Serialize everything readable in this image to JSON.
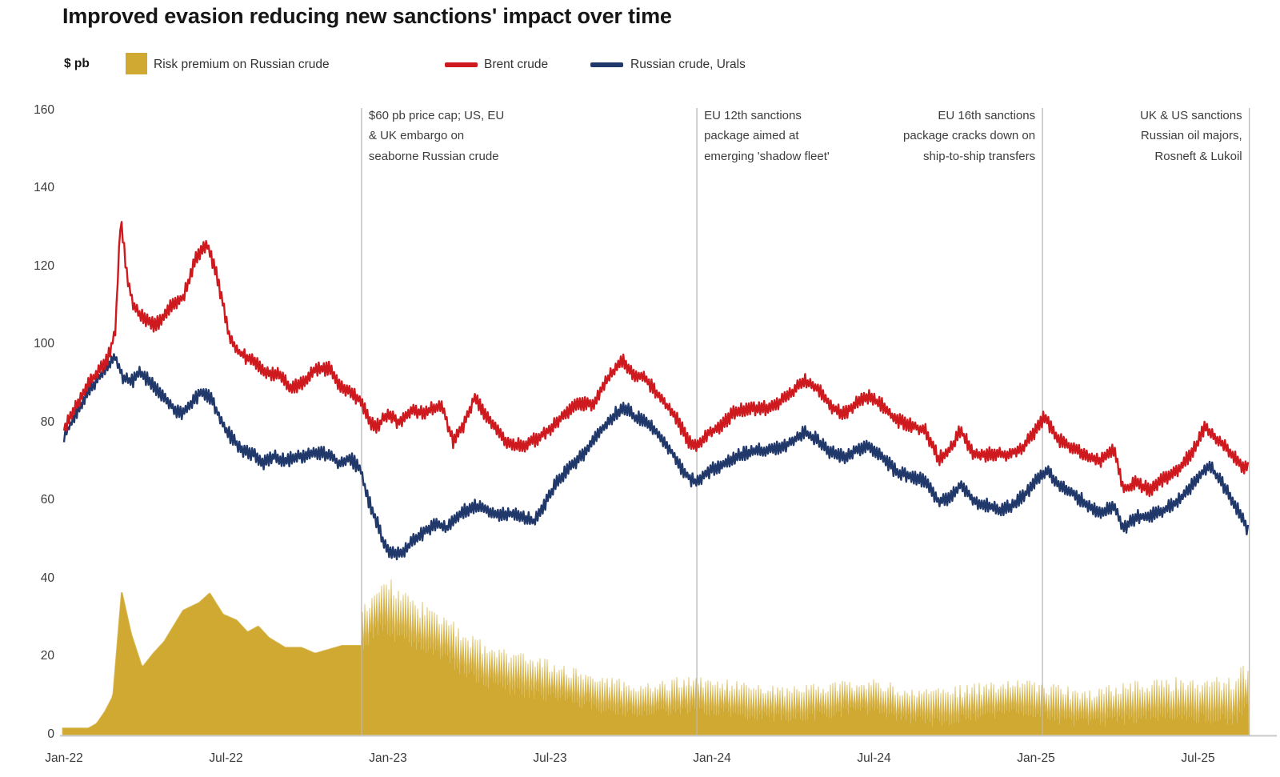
{
  "title": "Improved evasion reducing new sanctions' impact over time",
  "legend": {
    "unit_label": "$ pb",
    "items": [
      {
        "label": "Risk premium on Russian crude",
        "color": "#D0A933",
        "type": "area"
      },
      {
        "label": "Brent crude",
        "color": "#CE1A1E",
        "type": "line"
      },
      {
        "label": "Russian crude, Urals",
        "color": "#21386B",
        "type": "line"
      }
    ]
  },
  "annotations": [
    {
      "id": "price-cap-embargo",
      "month": 11.02,
      "align": "left",
      "lines": [
        "$60 pb price cap; US, EU",
        "& UK embargo on",
        "seaborne Russian crude"
      ]
    },
    {
      "id": "eu-12th-package",
      "month": 23.44,
      "align": "left",
      "lines": [
        "EU 12th sanctions",
        "package aimed at",
        "emerging 'shadow fleet'"
      ]
    },
    {
      "id": "eu-16th-package",
      "month": 36.24,
      "align": "right",
      "lines": [
        "EU 16th sanctions",
        "package cracks down on",
        "ship-to-ship transfers"
      ]
    },
    {
      "id": "uk-us-oil-majors",
      "month": 43.9,
      "align": "right",
      "lines": [
        "UK & US sanctions",
        "Russian oil majors,",
        "Rosneft & Lukoil"
      ]
    }
  ],
  "chart_data": {
    "type": "composite",
    "title": "Improved evasion reducing new sanctions' impact over time",
    "ylabel": "$ pb",
    "grid": false,
    "x_axis": {
      "unit": "months since Jan-2022",
      "range": [
        0,
        44.8
      ],
      "ticks": [
        {
          "m": 0,
          "label": "Jan-22"
        },
        {
          "m": 6,
          "label": "Jul-22"
        },
        {
          "m": 12,
          "label": "Jan-23"
        },
        {
          "m": 18,
          "label": "Jul-23"
        },
        {
          "m": 24,
          "label": "Jan-24"
        },
        {
          "m": 30,
          "label": "Jul-24"
        },
        {
          "m": 36,
          "label": "Jan-25"
        },
        {
          "m": 42,
          "label": "Jul-25"
        }
      ]
    },
    "y_axis": {
      "unit": "$ pb",
      "range": [
        0,
        160
      ],
      "ticks": [
        0,
        20,
        40,
        60,
        80,
        100,
        120,
        140,
        160
      ]
    },
    "series": [
      {
        "name": "Risk premium on Russian crude",
        "type": "area",
        "color": "#D0A933",
        "tip_color": "#DCBE62",
        "smooth_until_month": 11.02,
        "knots_smooth": [
          [
            0,
            1.8
          ],
          [
            0.9,
            1.8
          ],
          [
            1.2,
            3
          ],
          [
            1.5,
            6
          ],
          [
            1.8,
            10
          ],
          [
            2.13,
            37.5
          ],
          [
            2.5,
            26
          ],
          [
            2.9,
            17.5
          ],
          [
            3.3,
            21
          ],
          [
            3.7,
            24
          ],
          [
            4.4,
            32
          ],
          [
            5,
            34
          ],
          [
            5.4,
            36.5
          ],
          [
            5.9,
            31
          ],
          [
            6.4,
            29.5
          ],
          [
            6.8,
            26.5
          ],
          [
            7.2,
            28
          ],
          [
            7.6,
            25
          ],
          [
            8.2,
            22.5
          ],
          [
            8.8,
            22.5
          ],
          [
            9.3,
            21
          ],
          [
            9.8,
            22
          ],
          [
            10.3,
            23
          ],
          [
            11.02,
            23
          ]
        ],
        "noisy_mean_knots": [
          [
            11.05,
            28
          ],
          [
            11.5,
            31
          ],
          [
            11.8,
            33
          ],
          [
            12.2,
            31
          ],
          [
            12.6,
            29
          ],
          [
            13,
            27.5
          ],
          [
            13.6,
            26
          ],
          [
            14.2,
            24
          ],
          [
            15,
            21
          ],
          [
            15.6,
            19
          ],
          [
            16.3,
            17
          ],
          [
            17,
            15
          ],
          [
            17.6,
            13.5
          ],
          [
            18.4,
            12.5
          ],
          [
            19.2,
            11.5
          ],
          [
            20,
            10.5
          ],
          [
            21,
            10
          ],
          [
            22,
            9.5
          ],
          [
            23,
            9.5
          ],
          [
            24,
            9
          ],
          [
            26,
            9
          ],
          [
            28,
            8.5
          ],
          [
            30,
            9
          ],
          [
            32,
            8
          ],
          [
            34,
            8
          ],
          [
            36,
            9
          ],
          [
            38,
            7.5
          ],
          [
            40,
            8
          ],
          [
            41,
            8.5
          ],
          [
            42,
            9
          ],
          [
            42.8,
            9.5
          ],
          [
            43.3,
            10
          ],
          [
            43.7,
            12
          ],
          [
            43.88,
            13
          ]
        ],
        "noisy_amp_knots": [
          [
            11.05,
            7
          ],
          [
            12,
            8
          ],
          [
            13,
            7
          ],
          [
            14,
            6.5
          ],
          [
            16,
            6
          ],
          [
            18,
            5.5
          ],
          [
            20,
            5
          ],
          [
            24,
            5
          ],
          [
            28,
            4.8
          ],
          [
            32,
            5
          ],
          [
            36,
            5.2
          ],
          [
            40,
            5.5
          ],
          [
            42.5,
            6
          ],
          [
            43.5,
            7
          ],
          [
            43.88,
            7
          ]
        ]
      },
      {
        "name": "Brent crude",
        "type": "line",
        "color": "#CE1A1E",
        "knots": [
          [
            0,
            78
          ],
          [
            0.5,
            84
          ],
          [
            1,
            90
          ],
          [
            1.6,
            96
          ],
          [
            1.9,
            104
          ],
          [
            2.1,
            133
          ],
          [
            2.35,
            117
          ],
          [
            2.6,
            110
          ],
          [
            3,
            106
          ],
          [
            3.4,
            104
          ],
          [
            3.9,
            108
          ],
          [
            4.4,
            111
          ],
          [
            4.9,
            122
          ],
          [
            5.3,
            126
          ],
          [
            5.6,
            120
          ],
          [
            5.9,
            111
          ],
          [
            6.1,
            103
          ],
          [
            6.4,
            99
          ],
          [
            6.7,
            97
          ],
          [
            7.1,
            95
          ],
          [
            7.5,
            92
          ],
          [
            8,
            92
          ],
          [
            8.4,
            89
          ],
          [
            8.9,
            92
          ],
          [
            9.3,
            95
          ],
          [
            9.8,
            95
          ],
          [
            10.2,
            90
          ],
          [
            10.7,
            87
          ],
          [
            11.02,
            85
          ],
          [
            11.3,
            80
          ],
          [
            11.6,
            79
          ],
          [
            12,
            83
          ],
          [
            12.4,
            81
          ],
          [
            12.9,
            84
          ],
          [
            13.4,
            83
          ],
          [
            14,
            84
          ],
          [
            14.4,
            74
          ],
          [
            14.8,
            78
          ],
          [
            15.2,
            86
          ],
          [
            15.6,
            82
          ],
          [
            16,
            79
          ],
          [
            16.4,
            75
          ],
          [
            17,
            74
          ],
          [
            17.5,
            75
          ],
          [
            18,
            77
          ],
          [
            18.5,
            81
          ],
          [
            19,
            85
          ],
          [
            19.6,
            86
          ],
          [
            20.1,
            92
          ],
          [
            20.7,
            96
          ],
          [
            21.1,
            92
          ],
          [
            21.5,
            91
          ],
          [
            21.9,
            88
          ],
          [
            22.3,
            85
          ],
          [
            22.7,
            82
          ],
          [
            23.1,
            77
          ],
          [
            23.44,
            75
          ],
          [
            23.8,
            78
          ],
          [
            24.3,
            79
          ],
          [
            24.8,
            82
          ],
          [
            25.4,
            83
          ],
          [
            26,
            84
          ],
          [
            26.5,
            86
          ],
          [
            27.1,
            89
          ],
          [
            27.4,
            91
          ],
          [
            27.9,
            88
          ],
          [
            28.4,
            83
          ],
          [
            28.9,
            81
          ],
          [
            29.4,
            85
          ],
          [
            29.8,
            87
          ],
          [
            30.3,
            85
          ],
          [
            30.8,
            81
          ],
          [
            31.3,
            79
          ],
          [
            31.9,
            77
          ],
          [
            32.4,
            70
          ],
          [
            32.9,
            74
          ],
          [
            33.2,
            79
          ],
          [
            33.7,
            73
          ],
          [
            34.3,
            73
          ],
          [
            34.9,
            72
          ],
          [
            35.5,
            73
          ],
          [
            36,
            78
          ],
          [
            36.3,
            82
          ],
          [
            36.8,
            77
          ],
          [
            37.3,
            75
          ],
          [
            37.9,
            72
          ],
          [
            38.4,
            70
          ],
          [
            38.9,
            72
          ],
          [
            39.25,
            62
          ],
          [
            39.7,
            64
          ],
          [
            40.2,
            63
          ],
          [
            40.7,
            66
          ],
          [
            41.2,
            68
          ],
          [
            41.7,
            71
          ],
          [
            42,
            74
          ],
          [
            42.25,
            78
          ],
          [
            42.6,
            75
          ],
          [
            43,
            73
          ],
          [
            43.3,
            71
          ],
          [
            43.6,
            69
          ],
          [
            43.88,
            69
          ]
        ]
      },
      {
        "name": "Russian crude, Urals",
        "type": "line",
        "color": "#21386B",
        "knots": [
          [
            0,
            76
          ],
          [
            0.5,
            82
          ],
          [
            1,
            88
          ],
          [
            1.5,
            93
          ],
          [
            1.9,
            97
          ],
          [
            2.2,
            92
          ],
          [
            2.5,
            91
          ],
          [
            2.8,
            93
          ],
          [
            3.2,
            90
          ],
          [
            3.6,
            86
          ],
          [
            4,
            83
          ],
          [
            4.3,
            81
          ],
          [
            4.7,
            84
          ],
          [
            5.1,
            88
          ],
          [
            5.4,
            87
          ],
          [
            5.8,
            82
          ],
          [
            6,
            79
          ],
          [
            6.3,
            76
          ],
          [
            6.6,
            73
          ],
          [
            7,
            72
          ],
          [
            7.4,
            69
          ],
          [
            7.8,
            71
          ],
          [
            8.2,
            70
          ],
          [
            8.6,
            72
          ],
          [
            9,
            73
          ],
          [
            9.4,
            74
          ],
          [
            9.8,
            73
          ],
          [
            10.2,
            70
          ],
          [
            10.6,
            71
          ],
          [
            11.02,
            67
          ],
          [
            11.2,
            61
          ],
          [
            11.5,
            56
          ],
          [
            11.8,
            50
          ],
          [
            12.1,
            47
          ],
          [
            12.4,
            47
          ],
          [
            12.7,
            49
          ],
          [
            13,
            51
          ],
          [
            13.4,
            53
          ],
          [
            13.8,
            54
          ],
          [
            14.2,
            52
          ],
          [
            14.6,
            55
          ],
          [
            15,
            57
          ],
          [
            15.4,
            58
          ],
          [
            15.8,
            57
          ],
          [
            16.2,
            57
          ],
          [
            16.6,
            57
          ],
          [
            17,
            56
          ],
          [
            17.4,
            54
          ],
          [
            17.8,
            58
          ],
          [
            18.2,
            63
          ],
          [
            18.6,
            67
          ],
          [
            19,
            70
          ],
          [
            19.4,
            74
          ],
          [
            19.9,
            79
          ],
          [
            20.4,
            83
          ],
          [
            20.8,
            84
          ],
          [
            21.2,
            81
          ],
          [
            21.6,
            80
          ],
          [
            22,
            77
          ],
          [
            22.4,
            74
          ],
          [
            22.8,
            70
          ],
          [
            23.2,
            67
          ],
          [
            23.44,
            66
          ],
          [
            23.7,
            68
          ],
          [
            24.1,
            69
          ],
          [
            24.5,
            70
          ],
          [
            25,
            71
          ],
          [
            25.5,
            72
          ],
          [
            26,
            73
          ],
          [
            26.5,
            74
          ],
          [
            27,
            76
          ],
          [
            27.4,
            78
          ],
          [
            27.9,
            75
          ],
          [
            28.4,
            71
          ],
          [
            28.9,
            70
          ],
          [
            29.3,
            72
          ],
          [
            29.8,
            74
          ],
          [
            30.3,
            72
          ],
          [
            30.8,
            68
          ],
          [
            31.4,
            66
          ],
          [
            31.9,
            64
          ],
          [
            32.4,
            59
          ],
          [
            32.9,
            61
          ],
          [
            33.2,
            65
          ],
          [
            33.7,
            61
          ],
          [
            34.2,
            60
          ],
          [
            34.7,
            58
          ],
          [
            35.2,
            59
          ],
          [
            35.7,
            62
          ],
          [
            36.1,
            66
          ],
          [
            36.4,
            68
          ],
          [
            36.9,
            65
          ],
          [
            37.4,
            63
          ],
          [
            37.9,
            60
          ],
          [
            38.4,
            57
          ],
          [
            38.9,
            58
          ],
          [
            39.25,
            52
          ],
          [
            39.7,
            55
          ],
          [
            40.2,
            56
          ],
          [
            40.7,
            58
          ],
          [
            41.2,
            60
          ],
          [
            41.7,
            63
          ],
          [
            42.1,
            66
          ],
          [
            42.4,
            68
          ],
          [
            42.7,
            65
          ],
          [
            43,
            62
          ],
          [
            43.3,
            59
          ],
          [
            43.6,
            56
          ],
          [
            43.88,
            52
          ]
        ]
      }
    ],
    "event_lines_months": [
      11.02,
      23.44,
      36.24,
      43.9
    ],
    "colors": {
      "axis": "#c9c9c9",
      "event_line": "#b8b8b8"
    }
  }
}
